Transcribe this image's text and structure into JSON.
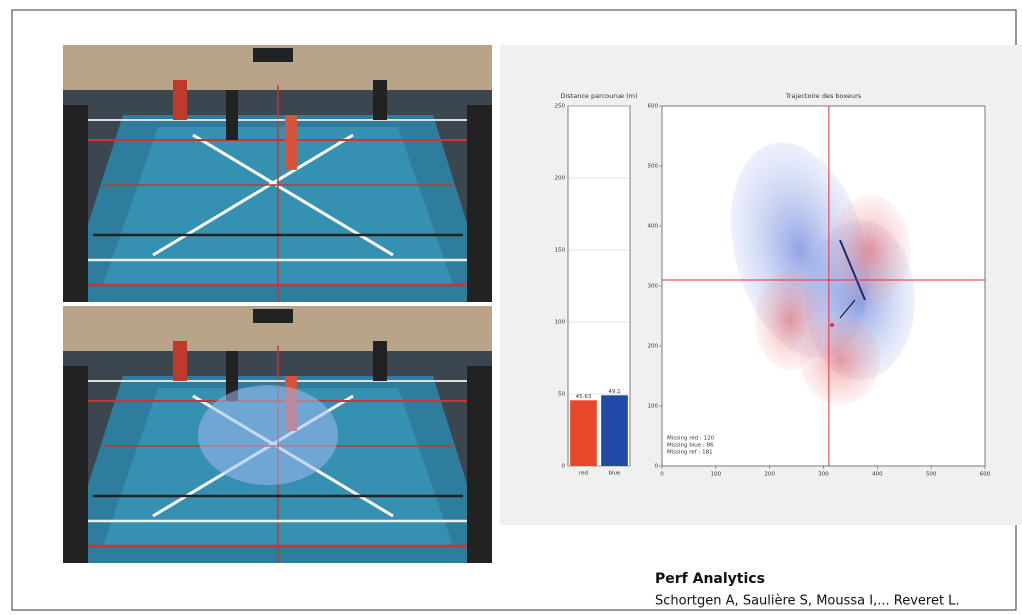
{
  "chart_data": [
    {
      "type": "bar",
      "title": "Distance parcourue (m)",
      "categories": [
        "red",
        "blue"
      ],
      "values": [
        45.63,
        49.1
      ],
      "colors": [
        "#e8472a",
        "#1f4aa8"
      ],
      "ylim": [
        0,
        250
      ],
      "yticks": [
        0,
        50,
        100,
        150,
        200,
        250
      ],
      "grid": true
    },
    {
      "type": "contour",
      "title": "Trajectoire des boxeurs",
      "xlim": [
        0,
        600
      ],
      "ylim": [
        0,
        600
      ],
      "xticks": [
        0,
        100,
        200,
        300,
        400,
        500,
        600
      ],
      "yticks": [
        0,
        100,
        200,
        300,
        400,
        500,
        600
      ],
      "reference_lines": {
        "x": 310,
        "y": 310,
        "color": "#e53030"
      },
      "annotations": [
        "Missing red : 120",
        "Missing blue : 86",
        "Missing ref : 181"
      ]
    }
  ],
  "caption": {
    "title": "Perf Analytics",
    "authors": "Schortgen A, Saulière S, Moussa I,... Reveret L."
  }
}
